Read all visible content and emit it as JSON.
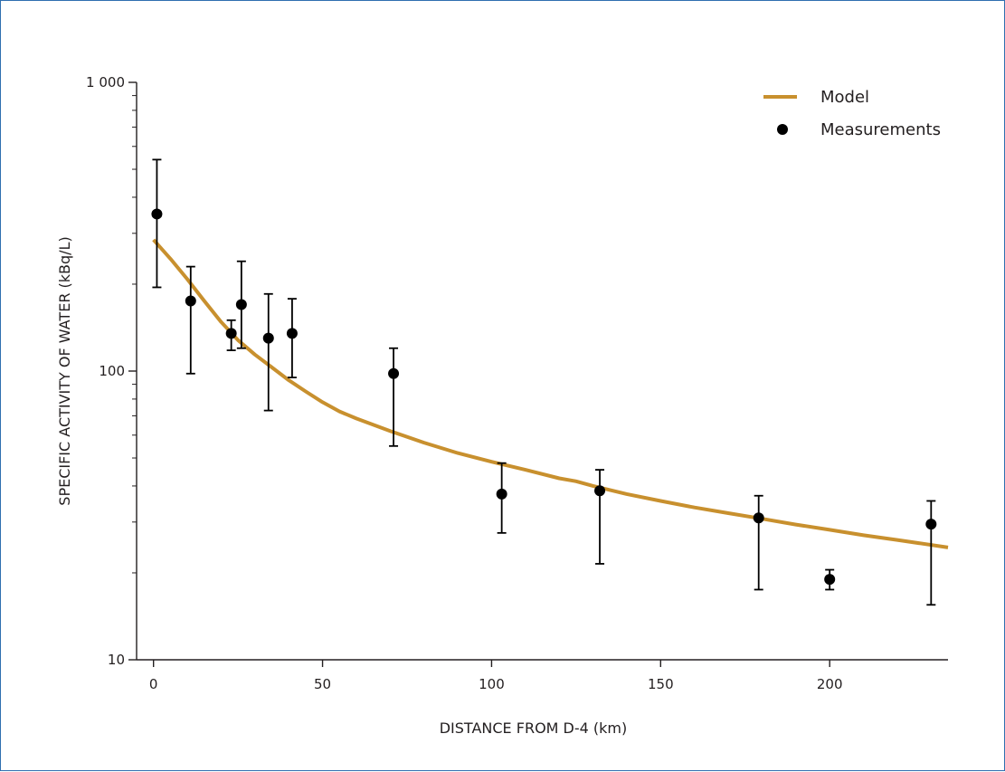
{
  "chart_data": {
    "type": "scatter",
    "xlabel": "DISTANCE FROM D-4 (km)",
    "ylabel": "SPECIFIC ACTIVITY OF WATER (kBq/L)",
    "xlim": [
      -5,
      235
    ],
    "ylim": [
      10,
      1000
    ],
    "y_scale": "log",
    "x_ticks": [
      {
        "value": 0,
        "label": "0"
      },
      {
        "value": 50,
        "label": "50"
      },
      {
        "value": 100,
        "label": "100"
      },
      {
        "value": 150,
        "label": "150"
      },
      {
        "value": 200,
        "label": "200"
      }
    ],
    "y_ticks": [
      {
        "value": 10,
        "label": "10"
      },
      {
        "value": 100,
        "label": "100"
      },
      {
        "value": 1000,
        "label": "1 000"
      }
    ],
    "grid": false,
    "legend_position": "top-right",
    "series": [
      {
        "name": "Model",
        "kind": "line",
        "color": "#c8902e",
        "x": [
          0,
          5,
          10,
          15,
          20,
          25,
          30,
          35,
          40,
          45,
          50,
          55,
          60,
          70,
          80,
          90,
          100,
          110,
          120,
          125,
          130,
          140,
          150,
          160,
          170,
          180,
          190,
          200,
          210,
          220,
          235
        ],
        "y": [
          285,
          245,
          208,
          175,
          148,
          128,
          114,
          103,
          93,
          85,
          78,
          72.5,
          68.5,
          62,
          56.5,
          52,
          48.5,
          45.5,
          42.5,
          41.5,
          40,
          37.5,
          35.5,
          33.7,
          32.2,
          30.8,
          29.4,
          28.2,
          27,
          26,
          24.5
        ]
      },
      {
        "name": "Measurements",
        "kind": "scatter",
        "color": "#000000",
        "points": [
          {
            "x": 1,
            "y": 350,
            "low": 195,
            "high": 540
          },
          {
            "x": 11,
            "y": 175,
            "low": 98,
            "high": 230
          },
          {
            "x": 23,
            "y": 135,
            "low": 118,
            "high": 150
          },
          {
            "x": 26,
            "y": 170,
            "low": 120,
            "high": 240
          },
          {
            "x": 34,
            "y": 130,
            "low": 73,
            "high": 185
          },
          {
            "x": 41,
            "y": 135,
            "low": 95,
            "high": 178
          },
          {
            "x": 71,
            "y": 98,
            "low": 55,
            "high": 120
          },
          {
            "x": 103,
            "y": 37.5,
            "low": 27.5,
            "high": 48
          },
          {
            "x": 132,
            "y": 38.5,
            "low": 21.5,
            "high": 45.5
          },
          {
            "x": 179,
            "y": 31,
            "low": 17.5,
            "high": 37
          },
          {
            "x": 200,
            "y": 19,
            "low": 17.5,
            "high": 20.5
          },
          {
            "x": 230,
            "y": 29.5,
            "low": 15.5,
            "high": 35.5
          }
        ]
      }
    ]
  }
}
